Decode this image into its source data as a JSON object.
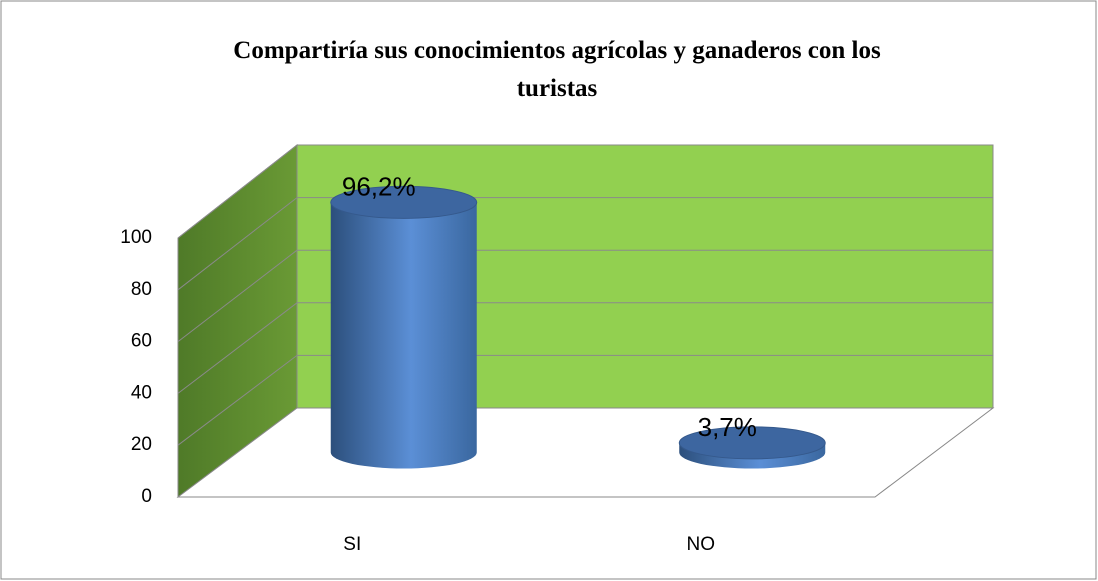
{
  "chart_data": {
    "type": "bar3d",
    "title": "Compartiría sus conocimientos agrícolas y ganaderos con los turistas",
    "categories": [
      "SI",
      "NO"
    ],
    "values": [
      96.2,
      3.7
    ],
    "value_labels": [
      "96,2%",
      "3,7%"
    ],
    "color": "#4f81bd",
    "wall_color": "#92d050",
    "ylim": [
      0,
      100
    ],
    "yticks": [
      0,
      20,
      40,
      60,
      80,
      100
    ],
    "grid": true
  }
}
